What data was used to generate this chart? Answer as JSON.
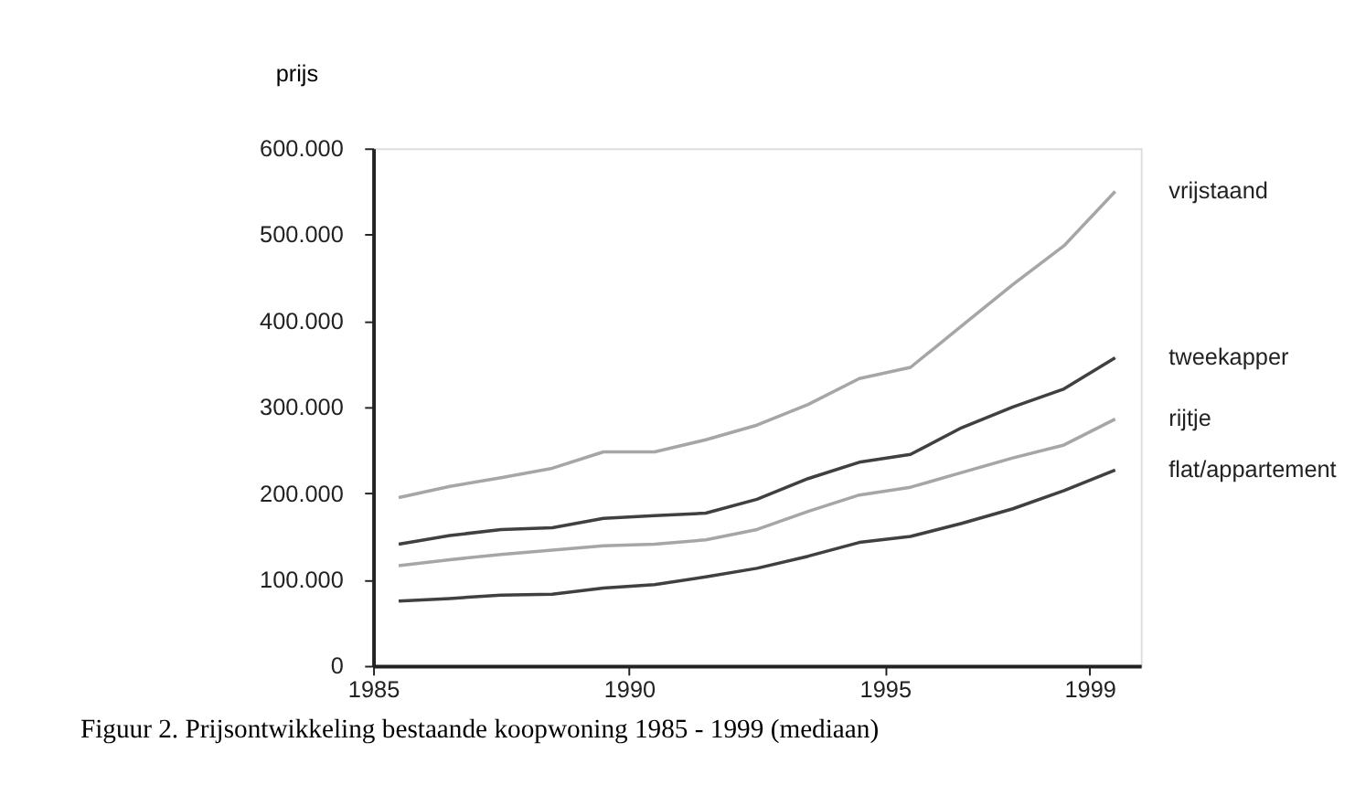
{
  "chart_data": {
    "type": "line",
    "ylabel": "prijs",
    "annotations": [
      "Figuur 2. Prijsontwikkeling bestaande koopwoning 1985 - 1999 (mediaan)"
    ],
    "x": [
      1985.5,
      1986.5,
      1987.5,
      1988.5,
      1989.5,
      1990.5,
      1991.5,
      1992.5,
      1993.5,
      1994.5,
      1995.5,
      1996.5,
      1997.5,
      1998.5,
      1999.5
    ],
    "xlim": [
      1985,
      2000
    ],
    "xticks": [
      1985,
      1990,
      1995,
      1999
    ],
    "ylim": [
      0,
      600000
    ],
    "yticks": [
      {
        "value": 0,
        "label": "0"
      },
      {
        "value": 100000,
        "label": "100.000"
      },
      {
        "value": 200000,
        "label": "200.000"
      },
      {
        "value": 300000,
        "label": "300.000"
      },
      {
        "value": 400000,
        "label": "400.000"
      },
      {
        "value": 500000,
        "label": "500.000"
      },
      {
        "value": 600000,
        "label": "600.000"
      }
    ],
    "series": [
      {
        "name": "vrijstaand",
        "color": "#a6a6a6",
        "values": [
          195000,
          208000,
          218000,
          229000,
          248000,
          248000,
          262000,
          279000,
          303000,
          333000,
          346000,
          394000,
          442000,
          487000,
          550000
        ]
      },
      {
        "name": "tweekapper",
        "color": "#404040",
        "values": [
          141000,
          151000,
          158000,
          160000,
          171000,
          174000,
          177000,
          193000,
          217000,
          236000,
          245000,
          276000,
          300000,
          321000,
          357000
        ]
      },
      {
        "name": "rijtje",
        "color": "#a6a6a6",
        "values": [
          116000,
          123000,
          129000,
          134000,
          139000,
          141000,
          146000,
          158000,
          179000,
          198000,
          207000,
          224000,
          241000,
          256000,
          286000
        ]
      },
      {
        "name": "flat/appartement",
        "color": "#404040",
        "values": [
          75000,
          78000,
          82000,
          83000,
          90000,
          94000,
          103000,
          113000,
          127000,
          143000,
          150000,
          165000,
          182000,
          203000,
          227000
        ]
      }
    ],
    "grid": false,
    "legend": false,
    "marker": "none",
    "line_style": "solid"
  }
}
